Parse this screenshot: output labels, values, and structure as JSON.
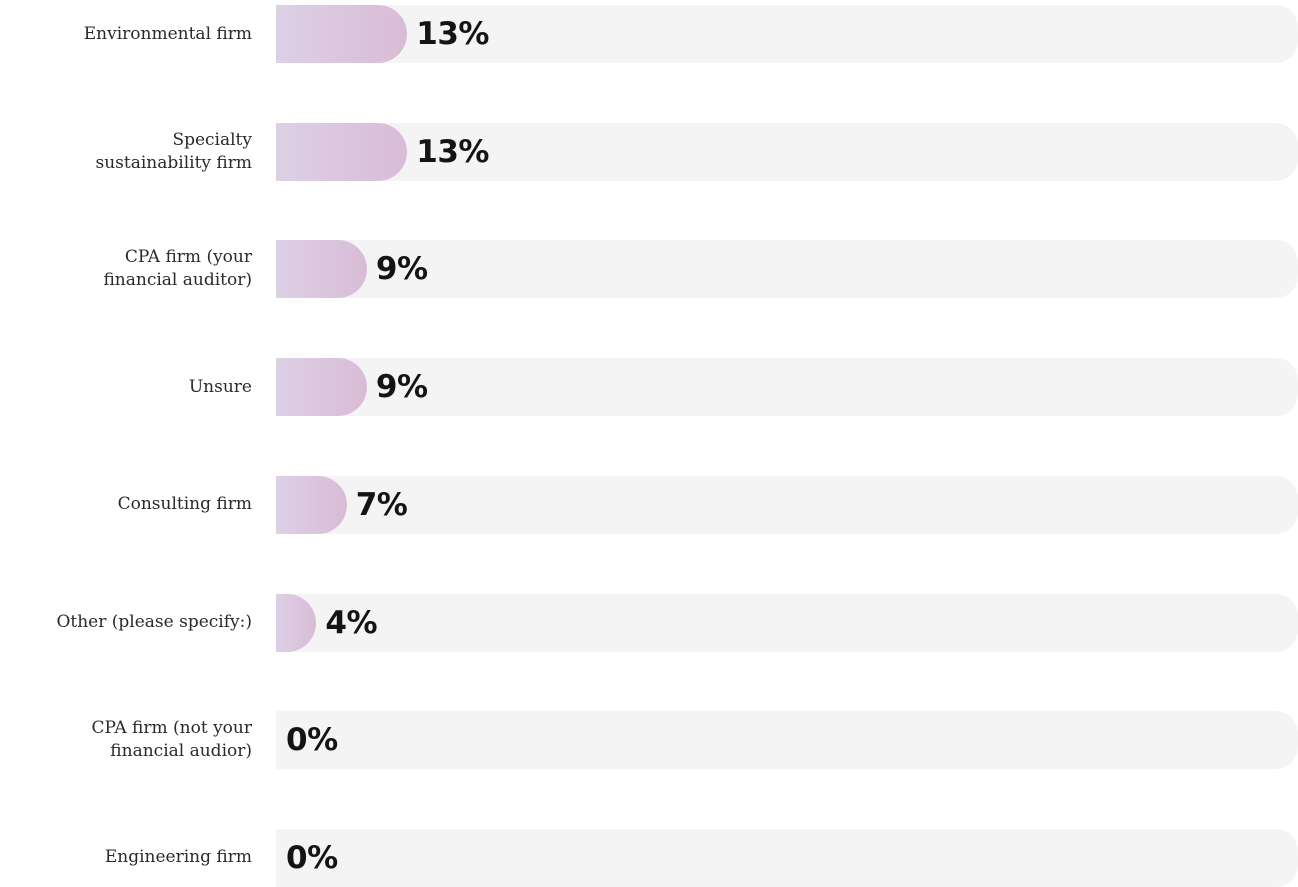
{
  "chart_data": {
    "type": "bar",
    "orientation": "horizontal",
    "categories": [
      "Environmental firm",
      "Specialty\nsustainability firm",
      "CPA firm (your\nfinancial auditor)",
      "Unsure",
      "Consulting firm",
      "Other (please specify:)",
      "CPA firm (not your\nfinancial audior)",
      "Engineering firm"
    ],
    "values": [
      13,
      13,
      9,
      9,
      7,
      4,
      0,
      0
    ],
    "value_labels": [
      "13%",
      "13%",
      "9%",
      "9%",
      "7%",
      "4%",
      "0%",
      "0%"
    ],
    "xlim": [
      0,
      100
    ],
    "title": "",
    "xlabel": "",
    "ylabel": "",
    "grid": false,
    "legend": "none"
  },
  "colors": {
    "fill_start": "#ddd0e5",
    "fill_end": "#d9bcd7",
    "track": "#f4f4f4",
    "label_text": "#2a2a2a",
    "value_text": "#141414"
  }
}
